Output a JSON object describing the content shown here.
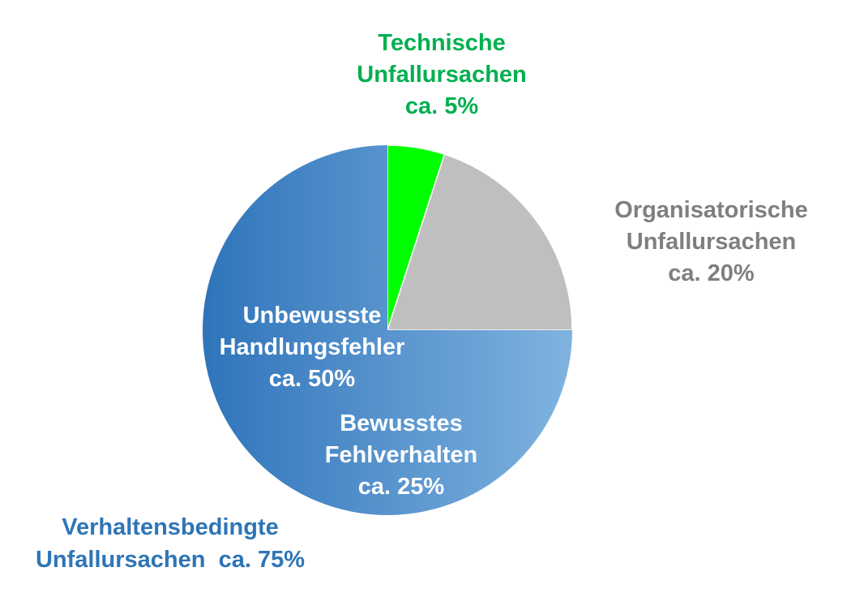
{
  "chart_data": {
    "type": "pie",
    "title": "",
    "slices": [
      {
        "name": "Technische Unfallursachen",
        "value": 5,
        "color": "#00FF00"
      },
      {
        "name": "Organisatorische Unfallursachen",
        "value": 20,
        "color": "#BFBFBF"
      },
      {
        "name": "Bewusstes Fehlverhalten",
        "value": 25,
        "color": "#6FA8DC"
      },
      {
        "name": "Unbewusste Handlungsfehler",
        "value": 50,
        "color": "#2E75B6"
      }
    ],
    "groups": [
      {
        "name": "Verhaltensbedingte Unfallursachen",
        "value": 75,
        "members": [
          "Bewusstes Fehlverhalten",
          "Unbewusste Handlungsfehler"
        ]
      }
    ],
    "labels": {
      "technisch": [
        "Technische",
        "Unfallursachen",
        "ca. 5%"
      ],
      "organisatorisch": [
        "Organisatorische",
        "Unfallursachen",
        "ca. 20%"
      ],
      "unbewusst": [
        "Unbewusste",
        "Handlungsfehler",
        "ca. 50%"
      ],
      "bewusst": [
        "Bewusstes",
        "Fehlverhalten",
        "ca. 25%"
      ],
      "verhalten": [
        "Verhaltensbedingte",
        "Unfallursachen  ca. 75%"
      ]
    },
    "label_colors": {
      "technisch": "#00B050",
      "organisatorisch": "#7F7F7F",
      "inner": "#FFFFFF",
      "verhalten": "#2E75B6"
    },
    "gradient": {
      "from": "#2F74BA",
      "to": "#80B3E0"
    }
  }
}
